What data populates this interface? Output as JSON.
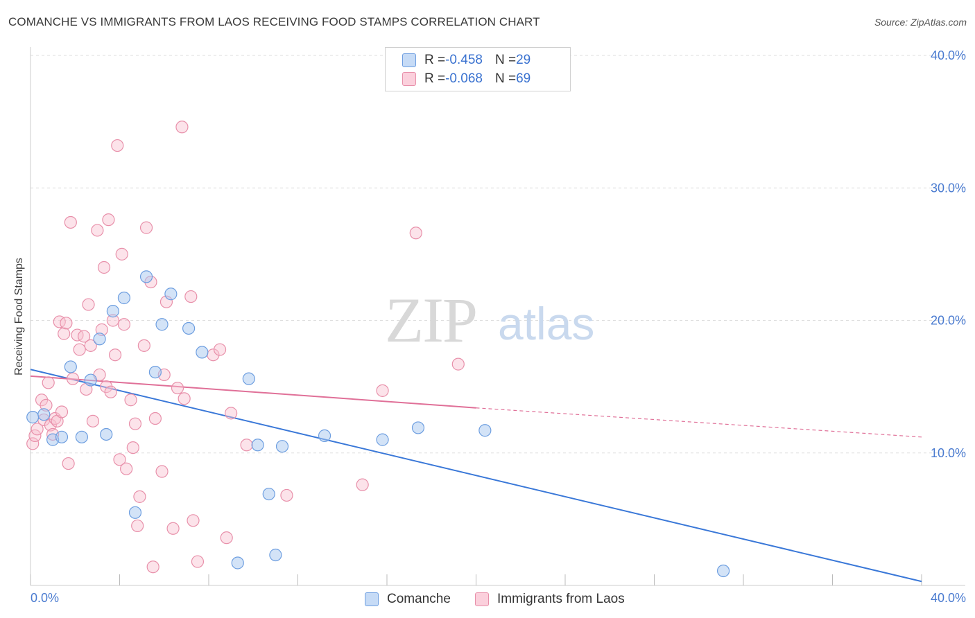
{
  "header": {
    "title": "COMANCHE VS IMMIGRANTS FROM LAOS RECEIVING FOOD STAMPS CORRELATION CHART",
    "source": "Source: ZipAtlas.com"
  },
  "watermark": {
    "zip": "ZIP",
    "atlas": "atlas"
  },
  "legend": {
    "rows": [
      {
        "r_label": "R = ",
        "r_value": "-0.458",
        "n_label": "N = ",
        "n_value": "29",
        "color": "#a8c8f0",
        "border": "#6d9ee0"
      },
      {
        "r_label": "R = ",
        "r_value": "-0.068",
        "n_label": "N = ",
        "n_value": "69",
        "color": "#f8c0d0",
        "border": "#e890aa"
      }
    ]
  },
  "bottom_legend": {
    "comanche": "Comanche",
    "laos": "Immigrants from Laos"
  },
  "colors": {
    "comanche_fill": "#a8c8f0",
    "comanche_stroke": "#6d9ee0",
    "comanche_line": "#3a78d8",
    "laos_fill": "#f8c0d0",
    "laos_stroke": "#e890aa",
    "laos_line": "#e07098"
  },
  "chart_data": {
    "type": "scatter",
    "title": "COMANCHE VS IMMIGRANTS FROM LAOS RECEIVING FOOD STAMPS CORRELATION CHART",
    "xlabel": "",
    "ylabel": "Receiving Food Stamps",
    "xlim": [
      0,
      40
    ],
    "ylim": [
      0,
      40
    ],
    "x_tick_labels": [
      "0.0%",
      "40.0%"
    ],
    "y_ticks": [
      10,
      20,
      30,
      40
    ],
    "y_tick_labels": [
      "10.0%",
      "20.0%",
      "30.0%",
      "40.0%"
    ],
    "grid": true,
    "legend_position": "top-center",
    "series": [
      {
        "name": "Comanche",
        "points": [
          [
            0.1,
            12.7
          ],
          [
            0.6,
            12.9
          ],
          [
            1.0,
            11.0
          ],
          [
            1.4,
            11.2
          ],
          [
            1.8,
            16.5
          ],
          [
            2.3,
            11.2
          ],
          [
            2.7,
            15.5
          ],
          [
            3.1,
            18.6
          ],
          [
            3.4,
            11.4
          ],
          [
            3.7,
            20.7
          ],
          [
            4.2,
            21.7
          ],
          [
            4.7,
            5.5
          ],
          [
            5.2,
            23.3
          ],
          [
            5.6,
            16.1
          ],
          [
            5.9,
            19.7
          ],
          [
            6.3,
            22.0
          ],
          [
            7.1,
            19.4
          ],
          [
            7.7,
            17.6
          ],
          [
            9.3,
            1.7
          ],
          [
            9.8,
            15.6
          ],
          [
            10.2,
            10.6
          ],
          [
            10.7,
            6.9
          ],
          [
            11.0,
            2.3
          ],
          [
            11.3,
            10.5
          ],
          [
            13.2,
            11.3
          ],
          [
            15.8,
            11.0
          ],
          [
            17.4,
            11.9
          ],
          [
            20.4,
            11.7
          ],
          [
            31.1,
            1.1
          ]
        ],
        "trend": {
          "x": [
            0,
            40
          ],
          "y": [
            16.3,
            0.3
          ]
        }
      },
      {
        "name": "Immigrants from Laos",
        "points": [
          [
            0.1,
            10.7
          ],
          [
            0.2,
            11.3
          ],
          [
            0.3,
            11.8
          ],
          [
            0.5,
            14.0
          ],
          [
            0.6,
            12.5
          ],
          [
            0.7,
            13.6
          ],
          [
            0.8,
            15.3
          ],
          [
            0.9,
            12.1
          ],
          [
            1.0,
            11.4
          ],
          [
            1.1,
            12.6
          ],
          [
            1.2,
            12.4
          ],
          [
            1.3,
            19.9
          ],
          [
            1.4,
            13.1
          ],
          [
            1.5,
            19.0
          ],
          [
            1.6,
            19.8
          ],
          [
            1.7,
            9.2
          ],
          [
            1.8,
            27.4
          ],
          [
            1.9,
            15.6
          ],
          [
            2.1,
            18.9
          ],
          [
            2.2,
            17.8
          ],
          [
            2.4,
            18.8
          ],
          [
            2.5,
            14.8
          ],
          [
            2.6,
            21.2
          ],
          [
            2.7,
            18.1
          ],
          [
            2.8,
            12.4
          ],
          [
            3.0,
            26.8
          ],
          [
            3.1,
            15.9
          ],
          [
            3.2,
            19.3
          ],
          [
            3.3,
            24.0
          ],
          [
            3.4,
            15.0
          ],
          [
            3.5,
            27.6
          ],
          [
            3.6,
            14.6
          ],
          [
            3.7,
            20.0
          ],
          [
            3.8,
            17.4
          ],
          [
            3.9,
            33.2
          ],
          [
            4.0,
            9.5
          ],
          [
            4.1,
            25.0
          ],
          [
            4.2,
            19.7
          ],
          [
            4.3,
            8.8
          ],
          [
            4.5,
            14.0
          ],
          [
            4.6,
            10.4
          ],
          [
            4.7,
            12.2
          ],
          [
            4.8,
            4.5
          ],
          [
            4.9,
            6.7
          ],
          [
            5.1,
            18.1
          ],
          [
            5.2,
            27.0
          ],
          [
            5.4,
            22.9
          ],
          [
            5.5,
            1.4
          ],
          [
            5.6,
            12.6
          ],
          [
            5.9,
            8.6
          ],
          [
            6.0,
            15.9
          ],
          [
            6.1,
            21.4
          ],
          [
            6.4,
            4.3
          ],
          [
            6.6,
            14.9
          ],
          [
            6.8,
            34.6
          ],
          [
            6.9,
            14.1
          ],
          [
            7.2,
            21.8
          ],
          [
            7.3,
            4.9
          ],
          [
            7.5,
            1.8
          ],
          [
            8.2,
            17.4
          ],
          [
            8.5,
            17.8
          ],
          [
            8.8,
            3.6
          ],
          [
            9.0,
            13.0
          ],
          [
            9.7,
            10.6
          ],
          [
            11.5,
            6.8
          ],
          [
            14.9,
            7.6
          ],
          [
            15.8,
            14.7
          ],
          [
            17.3,
            26.6
          ],
          [
            19.2,
            16.7
          ]
        ],
        "trend": {
          "x": [
            0,
            20
          ],
          "y": [
            15.8,
            13.4
          ]
        },
        "trend_extension": {
          "x": [
            20,
            40
          ],
          "y": [
            13.4,
            11.2
          ]
        }
      }
    ]
  }
}
